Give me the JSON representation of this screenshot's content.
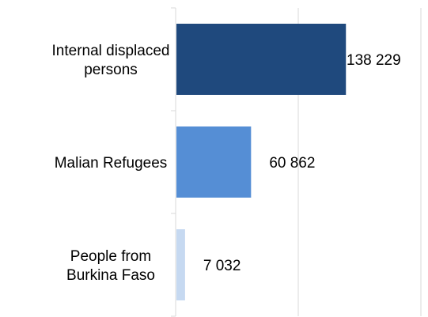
{
  "chart_data": {
    "type": "bar",
    "orientation": "horizontal",
    "categories": [
      "Internal displaced persons",
      "Malian Refugees",
      "People from Burkina Faso"
    ],
    "category_lines": [
      [
        "Internal displaced",
        "persons"
      ],
      [
        "Malian Refugees"
      ],
      [
        "People from",
        "Burkina Faso"
      ]
    ],
    "values": [
      138229,
      60862,
      7032
    ],
    "value_labels": [
      "138 229",
      "60 862",
      "7 032"
    ],
    "colors": [
      "#1f497d",
      "#558ed5",
      "#c6d9f1"
    ],
    "xlim": [
      0,
      200000
    ],
    "grid": true,
    "legend": "none"
  }
}
